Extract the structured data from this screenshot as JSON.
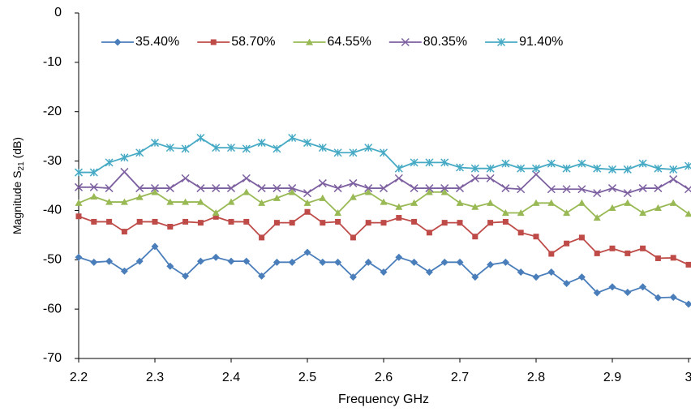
{
  "chart_data": {
    "type": "line",
    "ylabel_main": "Magnitude S",
    "ylabel_sub": "21",
    "ylabel_unit": "(dB)",
    "xlabel": "Frequency GHz",
    "x": [
      2.2,
      2.22,
      2.24,
      2.26,
      2.28,
      2.3,
      2.32,
      2.34,
      2.36,
      2.38,
      2.4,
      2.42,
      2.44,
      2.46,
      2.48,
      2.5,
      2.52,
      2.54,
      2.56,
      2.58,
      2.6,
      2.62,
      2.64,
      2.66,
      2.68,
      2.7,
      2.72,
      2.74,
      2.76,
      2.78,
      2.8,
      2.82,
      2.84,
      2.86,
      2.88,
      2.9,
      2.92,
      2.94,
      2.96,
      2.98,
      3.0
    ],
    "series": [
      {
        "name": "35.40%",
        "color": "#4a7ebb",
        "marker": "diamond",
        "values": [
          -49.5,
          -50.5,
          -50.3,
          -52.3,
          -50.3,
          -47.3,
          -51.3,
          -53.3,
          -50.3,
          -49.5,
          -50.3,
          -50.3,
          -53.3,
          -50.5,
          -50.5,
          -48.5,
          -50.5,
          -50.5,
          -53.5,
          -50.5,
          -52.5,
          -49.5,
          -50.5,
          -52.5,
          -50.5,
          -50.5,
          -53.5,
          -51,
          -50.5,
          -52.5,
          -53.5,
          -52.5,
          -54.8,
          -53.5,
          -56.7,
          -55.5,
          -56.6,
          -55.5,
          -57.7,
          -57.6,
          -59
        ]
      },
      {
        "name": "58.70%",
        "color": "#be4b48",
        "marker": "square",
        "values": [
          -41.2,
          -42.3,
          -42.3,
          -44.3,
          -42.3,
          -42.3,
          -43.3,
          -42.3,
          -42.5,
          -41.3,
          -42.3,
          -42.3,
          -45.5,
          -42.5,
          -42.5,
          -40.3,
          -42.5,
          -42.3,
          -45.5,
          -42.5,
          -42.5,
          -41.5,
          -42.3,
          -44.5,
          -42.5,
          -42.5,
          -45.3,
          -42.5,
          -42.3,
          -44.5,
          -45.3,
          -48.8,
          -46.7,
          -45.5,
          -48.7,
          -47.7,
          -48.7,
          -47.7,
          -49.7,
          -49.6,
          -51
        ]
      },
      {
        "name": "64.55%",
        "color": "#98b954",
        "marker": "triangle",
        "values": [
          -38.5,
          -37.2,
          -38.3,
          -38.3,
          -37.3,
          -36.3,
          -38.3,
          -38.3,
          -38.3,
          -40.5,
          -38.3,
          -36.3,
          -38.5,
          -37.5,
          -36.3,
          -38.5,
          -37.5,
          -40.5,
          -37.3,
          -36.3,
          -38.3,
          -39.3,
          -38.5,
          -36.3,
          -36.3,
          -38.5,
          -39.3,
          -38.5,
          -40.5,
          -40.5,
          -38.5,
          -38.5,
          -40.5,
          -38.5,
          -41.5,
          -39.5,
          -38.5,
          -40.5,
          -39.5,
          -38.5,
          -40.7
        ]
      },
      {
        "name": "80.35%",
        "color": "#7d60a0",
        "marker": "x",
        "values": [
          -35.3,
          -35.3,
          -35.5,
          -32.2,
          -35.5,
          -35.5,
          -35.5,
          -33.5,
          -35.5,
          -35.5,
          -35.5,
          -33.5,
          -35.5,
          -35.5,
          -35.5,
          -36.5,
          -34.5,
          -35.5,
          -34.5,
          -35.5,
          -35.5,
          -33.5,
          -35.5,
          -35.5,
          -35.5,
          -35.5,
          -33.5,
          -33.5,
          -35.5,
          -35.7,
          -32.7,
          -35.7,
          -35.7,
          -35.7,
          -36.5,
          -35.5,
          -36.5,
          -35.5,
          -35.5,
          -33.7,
          -35.7
        ]
      },
      {
        "name": "91.40%",
        "color": "#46aac5",
        "marker": "star",
        "values": [
          -32.3,
          -32.3,
          -30.3,
          -29.3,
          -28.3,
          -26.3,
          -27.3,
          -27.5,
          -25.3,
          -27.3,
          -27.3,
          -27.5,
          -26.3,
          -27.5,
          -25.3,
          -26.3,
          -27.3,
          -28.3,
          -28.3,
          -27.3,
          -28.3,
          -31.5,
          -30.3,
          -30.3,
          -30.3,
          -31.3,
          -31.5,
          -31.5,
          -30.5,
          -31.5,
          -31.5,
          -30.5,
          -31.5,
          -30.5,
          -31.5,
          -31.7,
          -31.7,
          -30.5,
          -31.5,
          -31.7,
          -31.0
        ]
      }
    ],
    "xlim": [
      2.2,
      3.0
    ],
    "xticks": [
      2.2,
      2.3,
      2.4,
      2.5,
      2.6,
      2.7,
      2.8,
      2.9,
      3
    ],
    "ylim": [
      -70,
      0
    ],
    "yticks": [
      -70,
      -60,
      -50,
      -40,
      -30,
      -20,
      -10,
      0
    ],
    "grid": false,
    "legend": "top"
  }
}
